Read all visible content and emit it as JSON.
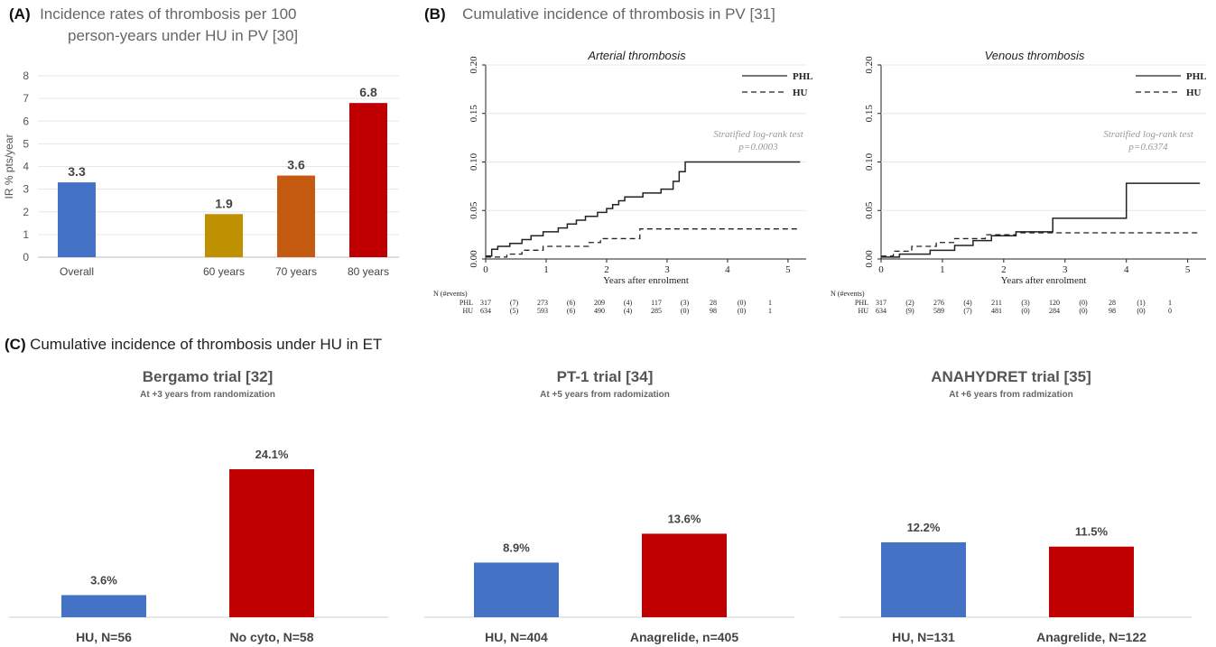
{
  "panel_a": {
    "label": "(A)",
    "title_line1": "Incidence rates of thrombosis per 100",
    "title_line2": "person-years under HU in PV [30]"
  },
  "panel_b": {
    "label": "(B)",
    "title": "Cumulative incidence of thrombosis in PV [31]"
  },
  "panel_c": {
    "label": "(C)",
    "title": "Cumulative incidence of thrombosis under HU in ET",
    "trials": [
      {
        "title": "Bergamo trial [32]",
        "subtitle": "At +3 years from randomization"
      },
      {
        "title": "PT-1 trial [34]",
        "subtitle": "At +5 years from radomization"
      },
      {
        "title": "ANAHYDRET trial [35]",
        "subtitle": "At +6 years from radmization"
      }
    ]
  },
  "chart_data": [
    {
      "id": "A",
      "type": "bar",
      "categories": [
        "Overall",
        "60 years",
        "70 years",
        "80 years"
      ],
      "values": [
        3.3,
        1.9,
        3.6,
        6.8
      ],
      "value_labels": [
        "3.3",
        "1.9",
        "3.6",
        "6.8"
      ],
      "colors": [
        "#4472c4",
        "#bf9000",
        "#c55a11",
        "#c00000"
      ],
      "ylabel": "IR % pts/year",
      "ylim": [
        0,
        8
      ],
      "yticks": [
        "0",
        "1",
        "2",
        "3",
        "4",
        "5",
        "6",
        "7",
        "8"
      ],
      "grid": true
    },
    {
      "id": "B1",
      "type": "line",
      "title": "Arterial thrombosis",
      "xlabel": "Years after enrolment",
      "xlim": [
        0,
        5.3
      ],
      "ylim": [
        0,
        0.2
      ],
      "xticks": [
        "0",
        "1",
        "2",
        "3",
        "4",
        "5"
      ],
      "yticks": [
        "0.00",
        "0.05",
        "0.10",
        "0.15",
        "0.20"
      ],
      "legend_position": "top-right",
      "annotation": [
        "Stratified log-rank test",
        "p=0.0003"
      ],
      "series": [
        {
          "name": "PHL",
          "style": "solid",
          "x": [
            0,
            0.1,
            0.2,
            0.4,
            0.6,
            0.75,
            0.95,
            1.2,
            1.35,
            1.5,
            1.65,
            1.85,
            2.0,
            2.1,
            2.2,
            2.3,
            2.6,
            2.9,
            3.1,
            3.2,
            3.3,
            5.2
          ],
          "y": [
            0.003,
            0.01,
            0.013,
            0.016,
            0.02,
            0.024,
            0.028,
            0.032,
            0.036,
            0.04,
            0.044,
            0.048,
            0.052,
            0.056,
            0.06,
            0.064,
            0.068,
            0.072,
            0.08,
            0.09,
            0.1,
            0.1
          ]
        },
        {
          "name": "HU",
          "style": "dashed",
          "x": [
            0,
            0.35,
            0.6,
            0.95,
            1.7,
            1.9,
            2.55,
            5.2
          ],
          "y": [
            0.002,
            0.005,
            0.009,
            0.013,
            0.017,
            0.021,
            0.031,
            0.031
          ]
        }
      ],
      "risk_table": {
        "header": "N (#events)",
        "rows": [
          {
            "label": "PHL",
            "values": [
              "317",
              "(7)",
              "273",
              "(6)",
              "209",
              "(4)",
              "117",
              "(3)",
              "28",
              "(0)",
              "1"
            ]
          },
          {
            "label": "HU",
            "values": [
              "634",
              "(5)",
              "593",
              "(6)",
              "490",
              "(4)",
              "285",
              "(0)",
              "98",
              "(0)",
              "1"
            ]
          }
        ]
      }
    },
    {
      "id": "B2",
      "type": "line",
      "title": "Venous thrombosis",
      "xlabel": "Years after enrolment",
      "xlim": [
        0,
        5.3
      ],
      "ylim": [
        0,
        0.2
      ],
      "xticks": [
        "0",
        "1",
        "2",
        "3",
        "4",
        "5"
      ],
      "yticks": [
        "0.00",
        "0.05",
        "0.10",
        "0.15",
        "0.20"
      ],
      "legend_position": "top-right",
      "annotation": [
        "Stratified log-rank test",
        "p=0.6374"
      ],
      "series": [
        {
          "name": "PHL",
          "style": "solid",
          "x": [
            0,
            0.3,
            0.8,
            1.2,
            1.5,
            1.8,
            2.2,
            2.8,
            4.0,
            5.2
          ],
          "y": [
            0.002,
            0.005,
            0.009,
            0.014,
            0.019,
            0.024,
            0.028,
            0.042,
            0.078,
            0.078
          ]
        },
        {
          "name": "HU",
          "style": "dashed",
          "x": [
            0,
            0.2,
            0.5,
            0.9,
            1.2,
            1.7,
            2.2,
            5.2
          ],
          "y": [
            0.003,
            0.008,
            0.013,
            0.017,
            0.021,
            0.025,
            0.027,
            0.027
          ]
        }
      ],
      "risk_table": {
        "header": "N (#events)",
        "rows": [
          {
            "label": "PHL",
            "values": [
              "317",
              "(2)",
              "276",
              "(4)",
              "211",
              "(3)",
              "120",
              "(0)",
              "28",
              "(1)",
              "1"
            ]
          },
          {
            "label": "HU",
            "values": [
              "634",
              "(9)",
              "589",
              "(7)",
              "481",
              "(0)",
              "284",
              "(0)",
              "98",
              "(0)",
              "0"
            ]
          }
        ]
      }
    },
    {
      "id": "C1",
      "type": "bar",
      "categories": [
        "HU, N=56",
        "No cyto, N=58"
      ],
      "values": [
        3.6,
        24.1
      ],
      "value_labels": [
        "3.6%",
        "24.1%"
      ],
      "colors": [
        "#4472c4",
        "#c00000"
      ],
      "ylim": [
        0,
        30
      ]
    },
    {
      "id": "C2",
      "type": "bar",
      "categories": [
        "HU, N=404",
        "Anagrelide, n=405"
      ],
      "values": [
        8.9,
        13.6
      ],
      "value_labels": [
        "8.9%",
        "13.6%"
      ],
      "colors": [
        "#4472c4",
        "#c00000"
      ],
      "ylim": [
        0,
        30
      ]
    },
    {
      "id": "C3",
      "type": "bar",
      "categories": [
        "HU, N=131",
        "Anagrelide, N=122"
      ],
      "values": [
        12.2,
        11.5
      ],
      "value_labels": [
        "12.2%",
        "11.5%"
      ],
      "colors": [
        "#4472c4",
        "#c00000"
      ],
      "ylim": [
        0,
        30
      ]
    }
  ]
}
